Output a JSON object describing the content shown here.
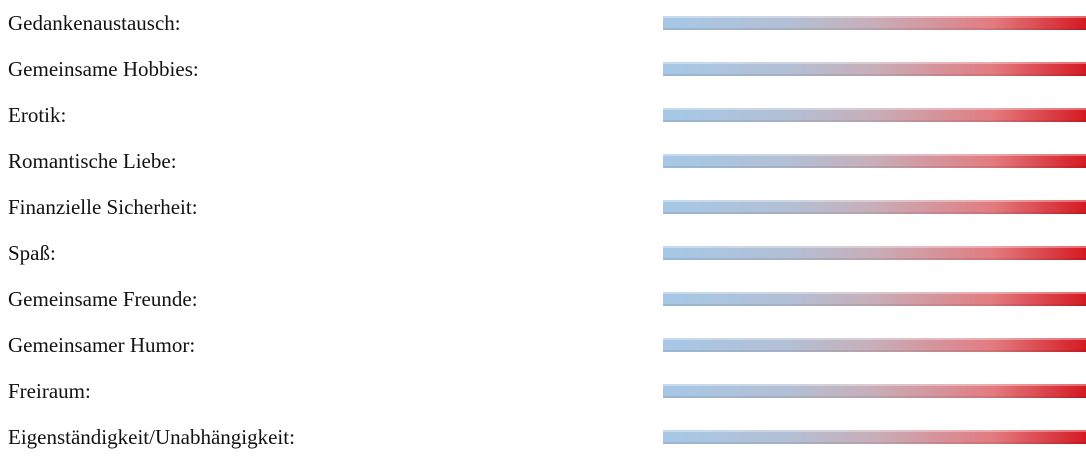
{
  "items": [
    {
      "label": "Gedankenaustausch:"
    },
    {
      "label": "Gemeinsame Hobbies:"
    },
    {
      "label": "Erotik:"
    },
    {
      "label": "Romantische Liebe:"
    },
    {
      "label": "Finanzielle Sicherheit:"
    },
    {
      "label": "Spaß:"
    },
    {
      "label": "Gemeinsame Freunde:"
    },
    {
      "label": "Gemeinsamer Humor:"
    },
    {
      "label": "Freiraum:"
    },
    {
      "label": "Eigenständigkeit/Unabhängigkeit:"
    }
  ],
  "colors": {
    "scale_low": "#a6c8e6",
    "scale_high": "#d51a22",
    "text": "#111111",
    "background": "#ffffff"
  }
}
